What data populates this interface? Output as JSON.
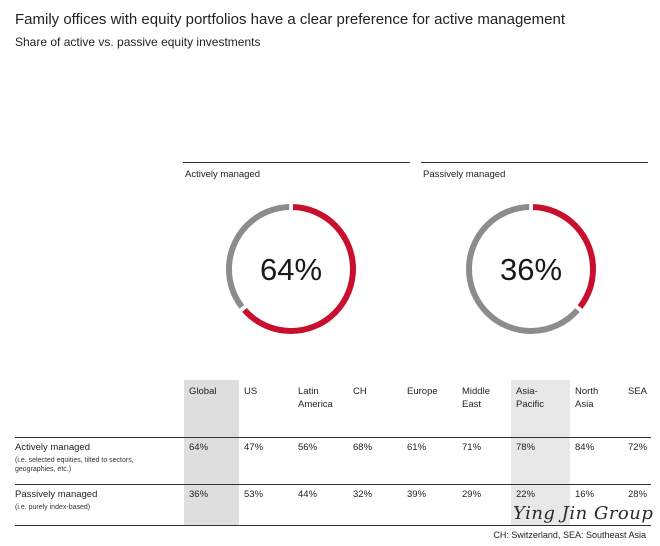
{
  "title": "Family offices with equity portfolios have a clear preference for active management",
  "subtitle": "Share of active vs. passive equity investments",
  "colors": {
    "active": "#c8102e",
    "passive": "#8c8c8c"
  },
  "chart_data": [
    {
      "type": "pie",
      "title": "Actively managed",
      "center_label": "64%",
      "slices": [
        {
          "label": "Actively managed",
          "value": 64,
          "color": "#c8102e"
        },
        {
          "label": "Passively managed",
          "value": 36,
          "color": "#8c8c8c"
        }
      ],
      "highlight": "Actively managed"
    },
    {
      "type": "pie",
      "title": "Passively managed",
      "center_label": "36%",
      "slices": [
        {
          "label": "Passively managed",
          "value": 36,
          "color": "#c8102e"
        },
        {
          "label": "Actively managed",
          "value": 64,
          "color": "#8c8c8c"
        }
      ],
      "highlight": "Passively managed"
    },
    {
      "type": "table",
      "columns": [
        "Global",
        "US",
        "Latin America",
        "CH",
        "Europe",
        "Middle East",
        "Asia-Pacific",
        "North Asia",
        "SEA"
      ],
      "column_lines": [
        [
          "Global"
        ],
        [
          "US"
        ],
        [
          "Latin",
          "America"
        ],
        [
          "CH"
        ],
        [
          "Europe"
        ],
        [
          "Middle",
          "East"
        ],
        [
          "Asia-",
          "Pacific"
        ],
        [
          "North",
          "Asia"
        ],
        [
          "SEA"
        ]
      ],
      "rows": [
        {
          "label": "Actively managed",
          "note": "(i.e. selected equities, tilted to sectors, geographies, etc.)",
          "display": [
            "64%",
            "47%",
            "56%",
            "68%",
            "61%",
            "71%",
            "78%",
            "84%",
            "72%"
          ],
          "values": [
            64,
            47,
            56,
            68,
            61,
            71,
            78,
            84,
            72
          ]
        },
        {
          "label": "Passively managed",
          "note": "(i.e. purely index-based)",
          "display": [
            "36%",
            "53%",
            "44%",
            "32%",
            "39%",
            "29%",
            "22%",
            "16%",
            "28%"
          ],
          "values": [
            36,
            53,
            44,
            32,
            39,
            29,
            22,
            16,
            28
          ]
        }
      ]
    }
  ],
  "footnote": "CH: Switzerland, SEA: Southeast Asia",
  "watermark": "Ying Jin Group"
}
